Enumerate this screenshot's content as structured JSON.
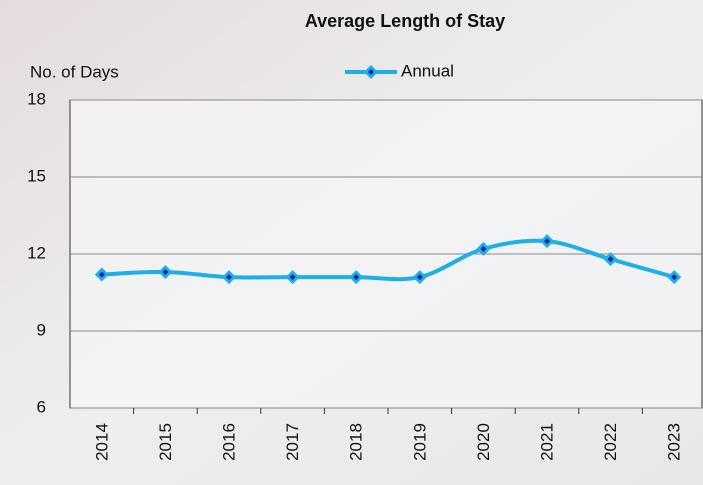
{
  "chart_data": {
    "type": "line",
    "title": "Average Length of Stay",
    "y_label": "No. of Days",
    "categories": [
      "2014",
      "2015",
      "2016",
      "2017",
      "2018",
      "2019",
      "2020",
      "2021",
      "2022",
      "2023"
    ],
    "series": [
      {
        "name": "Annual",
        "color": "#1cb0e6",
        "values": [
          11.2,
          11.3,
          11.1,
          11.1,
          11.1,
          11.1,
          12.2,
          12.5,
          11.8,
          11.1
        ]
      }
    ],
    "ylim": [
      6,
      18
    ],
    "yticks": [
      6,
      9,
      12,
      15,
      18
    ],
    "grid": true,
    "smooth": true,
    "legend": "top"
  }
}
